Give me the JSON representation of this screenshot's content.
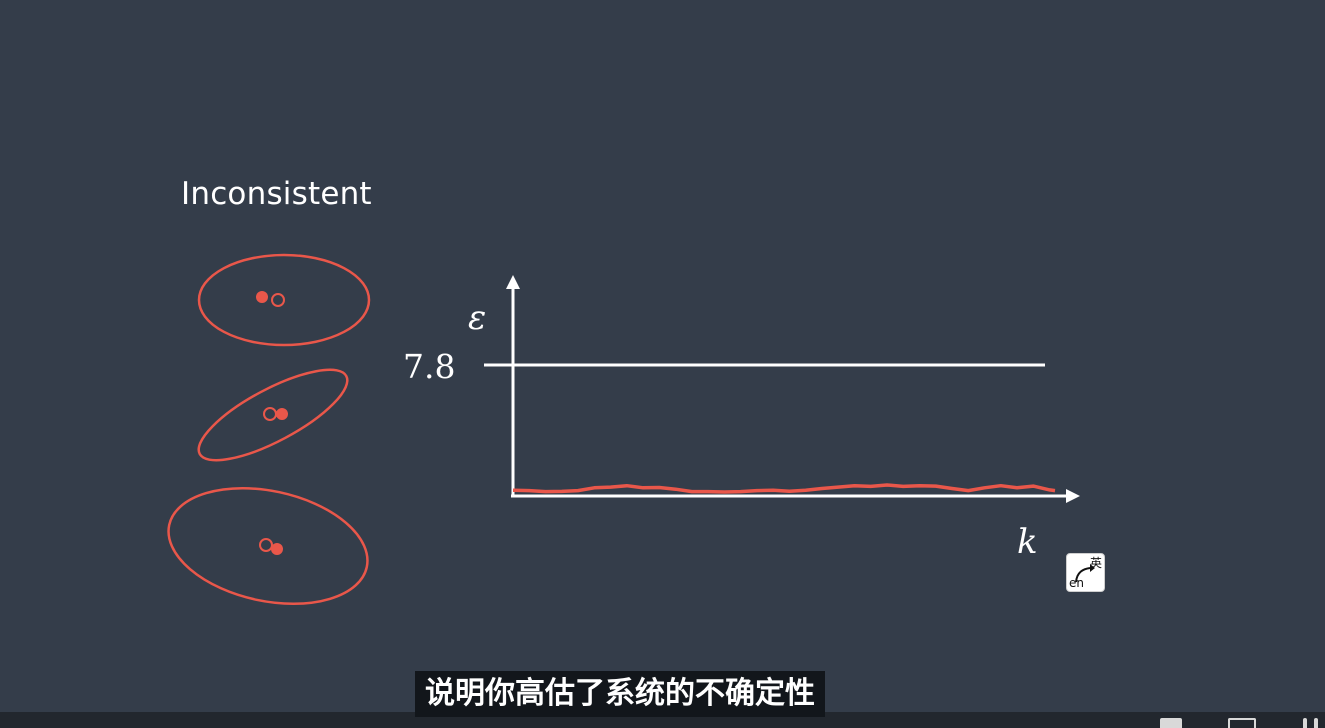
{
  "heading": "Inconsistent",
  "chart_data": {
    "type": "line",
    "ylabel": "ε",
    "xlabel": "k",
    "threshold": {
      "value": 7.8,
      "label": "7.8"
    },
    "ylim": [
      0,
      10
    ],
    "series": [
      {
        "x": [
          0,
          3,
          6,
          9,
          12,
          15,
          18,
          21,
          24,
          27,
          30,
          33,
          36,
          39,
          42,
          45,
          48,
          51,
          54,
          57,
          60,
          63,
          66,
          69,
          72,
          75,
          78,
          81,
          84,
          87,
          90,
          93,
          96,
          99,
          100
        ],
        "values": [
          0.12,
          0.1,
          0.03,
          0.04,
          0.1,
          0.3,
          0.35,
          0.45,
          0.3,
          0.32,
          0.2,
          0.03,
          0.03,
          0.0,
          0.03,
          0.1,
          0.12,
          0.06,
          0.12,
          0.25,
          0.35,
          0.45,
          0.4,
          0.5,
          0.4,
          0.45,
          0.42,
          0.25,
          0.1,
          0.3,
          0.45,
          0.3,
          0.42,
          0.15,
          0.1
        ]
      }
    ],
    "series_color": "#e9574a"
  },
  "lang_button": {
    "en": "en",
    "cn": "英"
  },
  "subtitle": "说明你高估了系统的不确定性",
  "colors": {
    "background": "#343d4a",
    "accent": "#e9574a",
    "axis": "#ffffff"
  }
}
